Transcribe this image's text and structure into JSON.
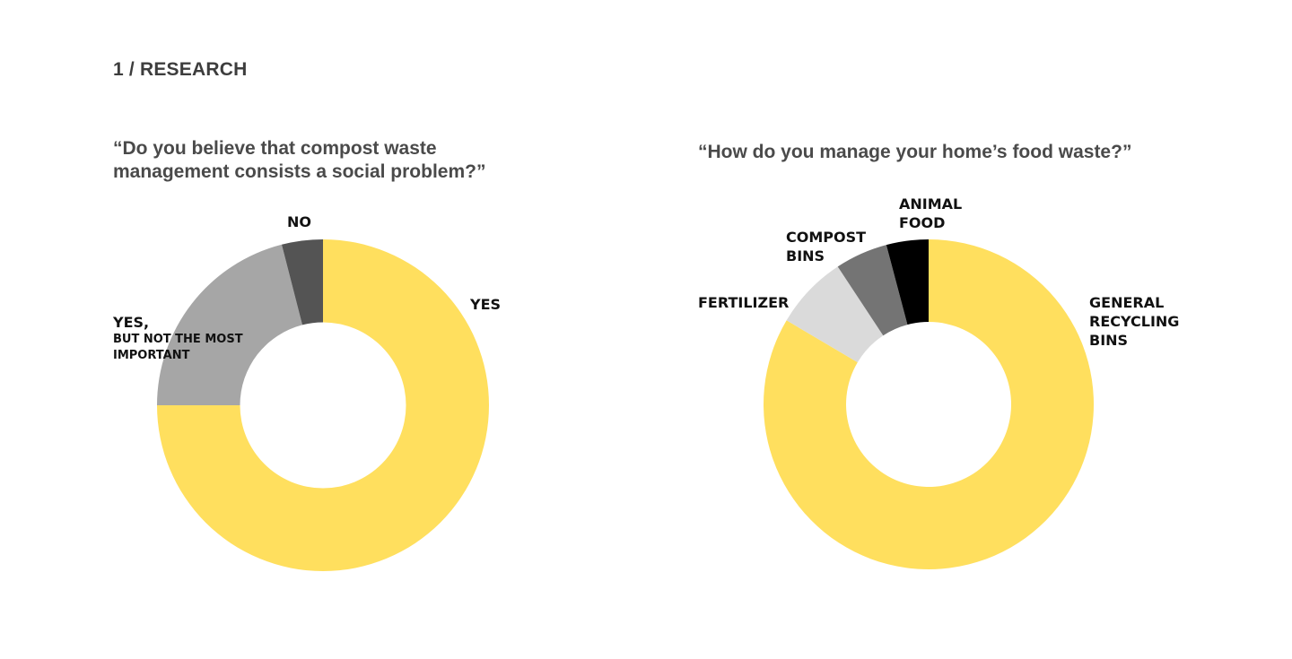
{
  "header": {
    "section_label": "1 / RESEARCH"
  },
  "chart_data": [
    {
      "type": "pie",
      "title": "“Do you believe that compost waste\nmanagement consists a social problem?”",
      "donut": true,
      "slices": [
        {
          "label": "YES",
          "value": 75,
          "color": "#FFDF5E"
        },
        {
          "label": "YES,",
          "sublabel": "BUT NOT THE MOST\nIMPORTANT",
          "value": 21,
          "color": "#A6A6A6"
        },
        {
          "label": "NO",
          "value": 4,
          "color": "#545454"
        }
      ]
    },
    {
      "type": "pie",
      "title": "“How do you manage your home’s food waste?”",
      "donut": true,
      "slices": [
        {
          "label": "GENERAL\nRECYCLING\nBINS",
          "value": 81,
          "color": "#FFDF5E"
        },
        {
          "label": "FERTILIZER",
          "value": 7,
          "color": "#DADADA"
        },
        {
          "label": "COMPOST\nBINS",
          "value": 5,
          "color": "#747474"
        },
        {
          "label": "ANIMAL\nFOOD",
          "value": 4,
          "color": "#000000"
        }
      ]
    }
  ]
}
